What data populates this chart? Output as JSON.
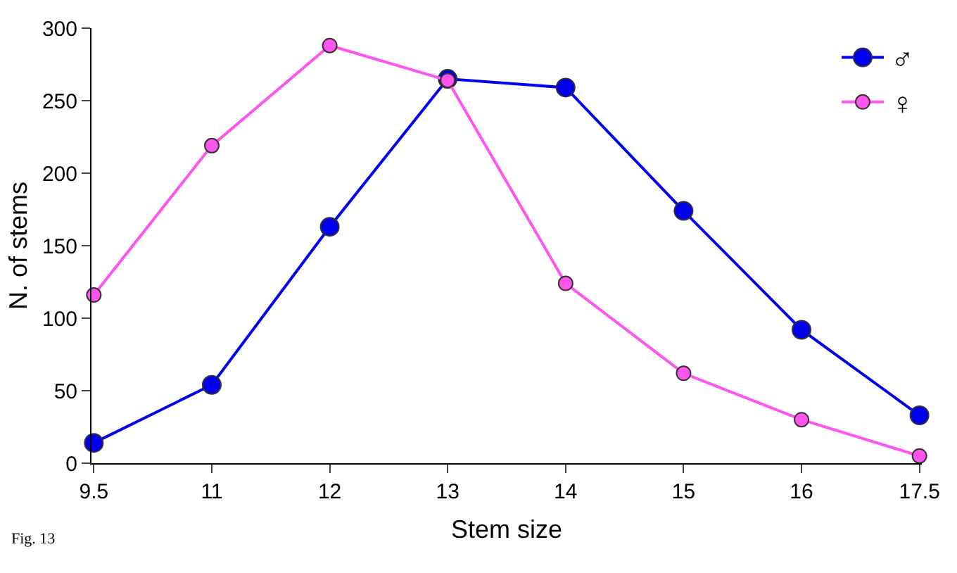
{
  "chart_data": {
    "type": "line",
    "xlabel": "Stem size",
    "ylabel": "N. of stems",
    "categories": [
      "9.5",
      "11",
      "12",
      "13",
      "14",
      "15",
      "16",
      "17.5"
    ],
    "series": [
      {
        "name": "♂",
        "color": "#0000ee",
        "values": [
          14,
          54,
          163,
          265,
          259,
          174,
          92,
          33
        ]
      },
      {
        "name": "♀",
        "color": "#ff55ee",
        "values": [
          116,
          219,
          288,
          264,
          124,
          62,
          30,
          5
        ]
      }
    ],
    "ylim": [
      0,
      300
    ],
    "yticks": [
      0,
      50,
      100,
      150,
      200,
      250,
      300
    ],
    "grid": false,
    "legend": "top right",
    "marker": "circle",
    "line_style": "solid",
    "annotations": [
      "Fig. 13"
    ]
  }
}
